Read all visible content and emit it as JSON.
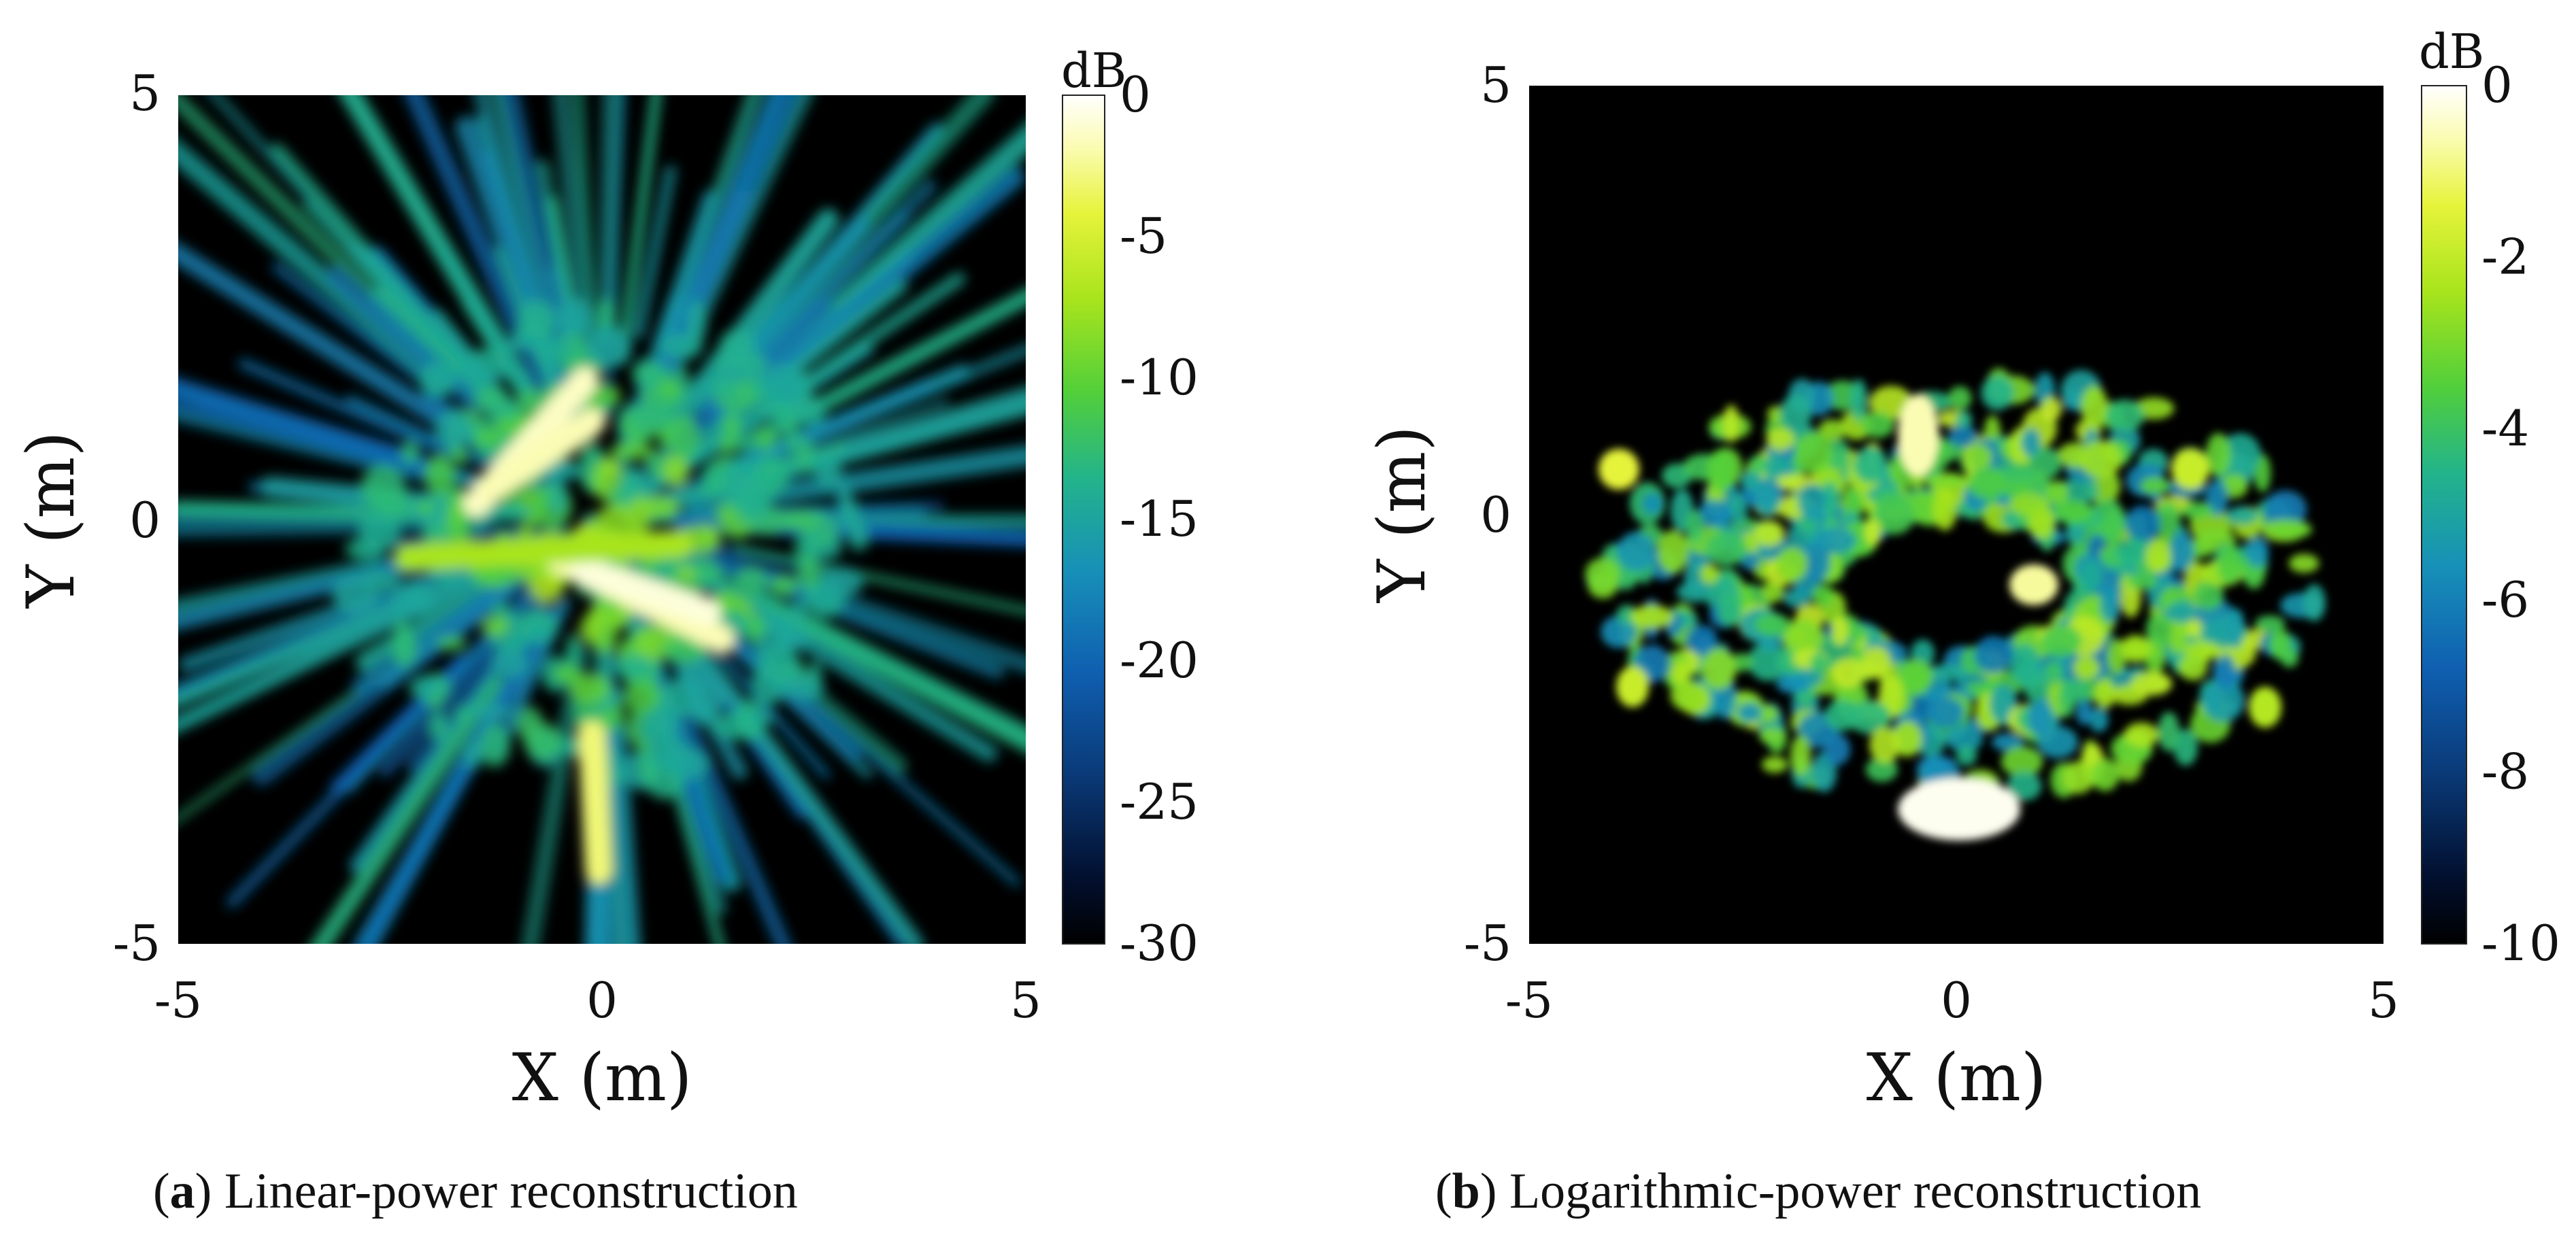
{
  "colors": {
    "colormap": [
      "#000000",
      "#021030",
      "#0a3a78",
      "#0f5fb0",
      "#1790b8",
      "#23b48a",
      "#52cf3a",
      "#a8e41c",
      "#e6f33a",
      "#fbfcb4",
      "#ffffff"
    ],
    "background": "#000000"
  },
  "chart_data": [
    {
      "type": "heatmap",
      "panel_label": "a",
      "caption": "Linear-power reconstruction",
      "xlabel": "X (m)",
      "ylabel": "Y (m)",
      "xlim": [
        -5,
        5
      ],
      "ylim": [
        -5,
        5
      ],
      "x_ticks": [
        "-5",
        "0",
        "5"
      ],
      "y_ticks": [
        "5",
        "0",
        "-5"
      ],
      "colorbar": {
        "unit": "dB",
        "range": [
          -30,
          0
        ],
        "ticks": [
          "0",
          "-5",
          "-10",
          "-15",
          "-20",
          "-25",
          "-30"
        ]
      }
    },
    {
      "type": "heatmap",
      "panel_label": "b",
      "caption": "Logarithmic-power reconstruction",
      "xlabel": "X (m)",
      "ylabel": "Y (m)",
      "xlim": [
        -5,
        5
      ],
      "ylim": [
        -5,
        5
      ],
      "x_ticks": [
        "-5",
        "0",
        "5"
      ],
      "y_ticks": [
        "5",
        "0",
        "-5"
      ],
      "colorbar": {
        "unit": "dB",
        "range": [
          -10,
          0
        ],
        "ticks": [
          "0",
          "-2",
          "-4",
          "-6",
          "-8",
          "-10"
        ]
      }
    }
  ]
}
